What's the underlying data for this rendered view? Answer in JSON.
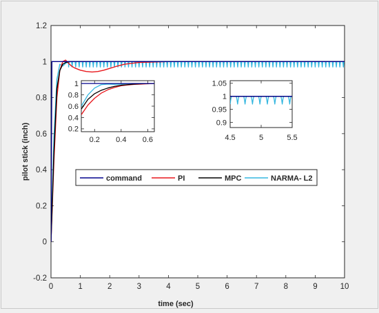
{
  "chart_data": [
    {
      "type": "line",
      "id": "main",
      "xlabel": "time (sec)",
      "ylabel": "pilot stick (inch)",
      "xlim": [
        0,
        10
      ],
      "ylim": [
        -0.2,
        1.2
      ],
      "xticks": [
        0,
        1,
        2,
        3,
        4,
        5,
        6,
        7,
        8,
        9,
        10
      ],
      "yticks": [
        -0.2,
        0,
        0.2,
        0.4,
        0.6,
        0.8,
        1,
        1.2
      ],
      "ytick_labels": [
        "-0.2",
        "0",
        "0.2",
        "0.4",
        "0.6",
        "0.8",
        "1",
        "1.2"
      ],
      "legend": {
        "position": "middle",
        "entries": [
          {
            "label": "command",
            "color": "#00008b"
          },
          {
            "label": "PI",
            "color": "#e8161b"
          },
          {
            "label": "MPC",
            "color": "#000000"
          },
          {
            "label": "NARMA- L2",
            "color": "#35b7e0"
          }
        ]
      },
      "series": [
        {
          "name": "command",
          "color": "#00008b",
          "x": [
            0,
            0.03,
            10
          ],
          "y": [
            0,
            1,
            1
          ]
        },
        {
          "name": "PI",
          "color": "#e8161b",
          "x": [
            0,
            0.1,
            0.2,
            0.3,
            0.4,
            0.5,
            0.6,
            0.7,
            0.8,
            1.0,
            1.2,
            1.4,
            1.6,
            1.8,
            2.0,
            2.2,
            2.5,
            3.0,
            4,
            10
          ],
          "y": [
            0,
            0.45,
            0.8,
            0.95,
            1.0,
            1.008,
            0.99,
            0.975,
            0.965,
            0.952,
            0.945,
            0.942,
            0.945,
            0.952,
            0.962,
            0.972,
            0.985,
            0.995,
            1,
            1
          ]
        },
        {
          "name": "MPC",
          "color": "#000000",
          "x": [
            0,
            0.1,
            0.2,
            0.3,
            0.4,
            0.5,
            0.6,
            0.7,
            1,
            10
          ],
          "y": [
            0,
            0.5,
            0.85,
            0.95,
            0.985,
            0.995,
            0.999,
            1.0,
            1,
            1
          ]
        },
        {
          "name": "NARMA- L2",
          "color": "#35b7e0",
          "x": [
            0,
            0.1,
            0.2,
            0.3,
            0.4,
            0.5,
            0.6
          ],
          "y": [
            0,
            0.58,
            0.9,
            0.985,
            0.975,
            0.99,
            1.0
          ],
          "oscillation": {
            "from": 0.6,
            "to": 10,
            "period": 0.12,
            "min": 0.97,
            "max": 1.0
          }
        }
      ]
    },
    {
      "type": "line",
      "id": "inset1",
      "xlim": [
        0.1,
        0.65
      ],
      "ylim": [
        0.15,
        1.05
      ],
      "xticks": [
        0.2,
        0.4,
        0.6
      ],
      "yticks": [
        0.2,
        0.4,
        0.6,
        0.8,
        1
      ],
      "ytick_labels": [
        "0.2",
        "0.4",
        "0.6",
        "0.8",
        "1"
      ],
      "series": [
        {
          "name": "command",
          "color": "#00008b",
          "x": [
            0.1,
            0.65
          ],
          "y": [
            1,
            1
          ]
        },
        {
          "name": "PI",
          "color": "#e8161b",
          "x": [
            0.1,
            0.15,
            0.2,
            0.25,
            0.3,
            0.35,
            0.4,
            0.45,
            0.5,
            0.55,
            0.6,
            0.65
          ],
          "y": [
            0.45,
            0.62,
            0.74,
            0.83,
            0.89,
            0.93,
            0.96,
            0.975,
            0.985,
            0.99,
            0.995,
            1
          ]
        },
        {
          "name": "MPC",
          "color": "#000000",
          "x": [
            0.1,
            0.15,
            0.2,
            0.25,
            0.3,
            0.35,
            0.4,
            0.45,
            0.5,
            0.55,
            0.6,
            0.65
          ],
          "y": [
            0.55,
            0.72,
            0.82,
            0.88,
            0.92,
            0.95,
            0.97,
            0.98,
            0.99,
            0.995,
            1,
            1
          ]
        },
        {
          "name": "NARMA- L2",
          "color": "#35b7e0",
          "x": [
            0.1,
            0.15,
            0.2,
            0.25,
            0.3,
            0.35,
            0.4,
            0.45,
            0.5,
            0.55,
            0.6,
            0.65
          ],
          "y": [
            0.6,
            0.8,
            0.92,
            0.98,
            0.99,
            0.985,
            0.99,
            1,
            0.995,
            1,
            0.995,
            1
          ]
        }
      ]
    },
    {
      "type": "line",
      "id": "inset2",
      "xlim": [
        4.5,
        5.5
      ],
      "ylim": [
        0.88,
        1.06
      ],
      "xticks": [
        4.5,
        5,
        5.5
      ],
      "xtick_labels": [
        "4.5",
        "5",
        "5.5"
      ],
      "yticks": [
        0.9,
        0.95,
        1,
        1.05
      ],
      "ytick_labels": [
        "0.9",
        "0.95",
        "1",
        "1.05"
      ],
      "series": [
        {
          "name": "command",
          "color": "#00008b",
          "x": [
            4.5,
            5.5
          ],
          "y": [
            1,
            1
          ]
        },
        {
          "name": "MPC",
          "color": "#000000",
          "x": [
            4.5,
            5.5
          ],
          "y": [
            1,
            1
          ]
        },
        {
          "name": "NARMA- L2",
          "color": "#35b7e0",
          "oscillation": {
            "from": 4.5,
            "to": 5.5,
            "period": 0.12,
            "min": 0.97,
            "max": 1.0
          }
        }
      ]
    }
  ]
}
